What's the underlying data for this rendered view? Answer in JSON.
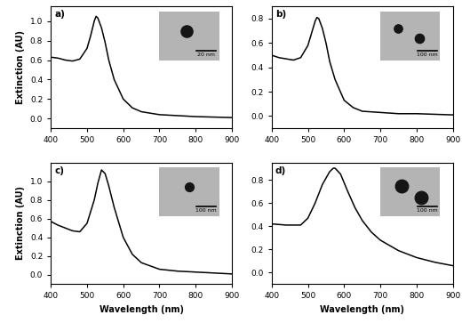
{
  "chart_data": [
    {
      "type": "line",
      "title": "a)",
      "y_label": "Extinction (AU)",
      "annotation": "20 nm",
      "color": "#000000",
      "x": [
        400,
        420,
        440,
        460,
        480,
        500,
        510,
        520,
        525,
        530,
        540,
        550,
        560,
        575,
        600,
        625,
        650,
        700,
        750,
        800,
        850,
        900
      ],
      "values": [
        0.63,
        0.62,
        0.6,
        0.59,
        0.61,
        0.72,
        0.85,
        1.0,
        1.05,
        1.03,
        0.93,
        0.78,
        0.6,
        0.4,
        0.2,
        0.11,
        0.07,
        0.04,
        0.03,
        0.02,
        0.015,
        0.01
      ],
      "xlim": [
        400,
        900
      ],
      "xticks": [
        400,
        500,
        600,
        700,
        800,
        900
      ],
      "ylim": [
        -0.1,
        1.15
      ],
      "yticks": [
        {
          "value": 0,
          "label": "0.0"
        },
        0.2,
        0.4,
        0.6,
        0.8,
        {
          "value": 1,
          "label": "1.0"
        }
      ]
    },
    {
      "type": "line",
      "title": "b)",
      "annotation": "100 nm",
      "color": "#000000",
      "x": [
        400,
        420,
        440,
        460,
        480,
        500,
        510,
        520,
        525,
        530,
        540,
        550,
        560,
        575,
        600,
        625,
        650,
        700,
        750,
        800,
        850,
        900
      ],
      "values": [
        0.5,
        0.48,
        0.47,
        0.46,
        0.48,
        0.58,
        0.68,
        0.78,
        0.81,
        0.8,
        0.72,
        0.6,
        0.45,
        0.3,
        0.13,
        0.07,
        0.04,
        0.03,
        0.02,
        0.02,
        0.015,
        0.01
      ],
      "xlim": [
        400,
        900
      ],
      "xticks": [
        400,
        500,
        600,
        700,
        800,
        900
      ],
      "ylim": [
        -0.1,
        0.9
      ],
      "yticks": [
        {
          "value": 0,
          "label": "0.0"
        },
        0.2,
        0.4,
        0.6,
        0.8
      ]
    },
    {
      "type": "line",
      "title": "c)",
      "y_label": "Extinction (AU)",
      "x_label": "Wavelength (nm)",
      "annotation": "100 nm",
      "color": "#000000",
      "x": [
        400,
        420,
        440,
        460,
        480,
        500,
        520,
        530,
        540,
        550,
        560,
        575,
        600,
        625,
        650,
        700,
        750,
        800,
        850,
        900
      ],
      "values": [
        0.57,
        0.53,
        0.5,
        0.47,
        0.46,
        0.55,
        0.8,
        0.98,
        1.12,
        1.08,
        0.95,
        0.72,
        0.4,
        0.22,
        0.13,
        0.06,
        0.04,
        0.03,
        0.02,
        0.01
      ],
      "xlim": [
        400,
        900
      ],
      "xticks": [
        400,
        500,
        600,
        700,
        800,
        900
      ],
      "ylim": [
        -0.1,
        1.2
      ],
      "yticks": [
        {
          "value": 0,
          "label": "0.0"
        },
        0.2,
        0.4,
        0.6,
        0.8,
        {
          "value": 1,
          "label": "1.0"
        }
      ]
    },
    {
      "type": "line",
      "title": "d)",
      "x_label": "Wavelength (nm)",
      "annotation": "100 nm",
      "color": "#000000",
      "x": [
        400,
        440,
        480,
        500,
        520,
        540,
        560,
        570,
        575,
        590,
        610,
        630,
        650,
        675,
        700,
        750,
        800,
        850,
        900
      ],
      "values": [
        0.42,
        0.41,
        0.41,
        0.47,
        0.6,
        0.76,
        0.87,
        0.9,
        0.9,
        0.85,
        0.7,
        0.56,
        0.45,
        0.35,
        0.28,
        0.19,
        0.13,
        0.09,
        0.06
      ],
      "xlim": [
        400,
        900
      ],
      "xticks": [
        400,
        500,
        600,
        700,
        800,
        900
      ],
      "ylim": [
        -0.1,
        0.95
      ],
      "yticks": [
        {
          "value": 0,
          "label": "0.0"
        },
        0.2,
        0.4,
        0.6,
        0.8
      ]
    }
  ]
}
